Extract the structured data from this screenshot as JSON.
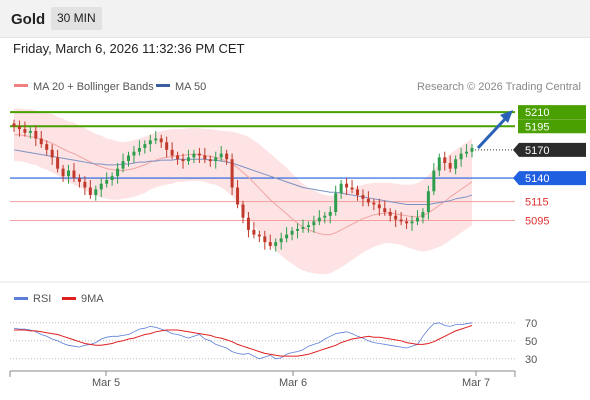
{
  "header": {
    "symbol": "Gold",
    "timeframe": "30 MIN"
  },
  "timestamp": "Friday, March 6, 2026 11:32:36 PM CET",
  "legend": {
    "bb_label": "MA 20 + Bollinger Bands",
    "bb_color": "#f08080",
    "ma50_label": "MA 50",
    "ma50_color": "#3a5f9f"
  },
  "copyright": "Research © 2026 Trading Central",
  "rsi_legend": {
    "rsi_label": "RSI",
    "rsi_color": "#5b7fd8",
    "ma_label": "9MA",
    "ma_color": "#e02020"
  },
  "colors": {
    "up": "#2e9e4e",
    "down": "#c0392b",
    "target": "#4aa000",
    "pivot": "#1f5fe0",
    "support": "#e03030",
    "band_fill": "#fde3e3"
  },
  "chart_data": [
    {
      "type": "candlestick",
      "xlabels": [
        "Mar 5",
        "Mar 6",
        "Mar 7"
      ],
      "ylim": [
        5035,
        5225
      ],
      "levels": [
        {
          "label": "5210",
          "value": 5210,
          "kind": "target"
        },
        {
          "label": "5195",
          "value": 5195,
          "kind": "target"
        },
        {
          "label": "5170",
          "value": 5170,
          "kind": "last"
        },
        {
          "label": "5140",
          "value": 5140,
          "kind": "pivot"
        },
        {
          "label": "5115",
          "value": 5115,
          "kind": "support"
        },
        {
          "label": "5095",
          "value": 5095,
          "kind": "support"
        }
      ],
      "closes": [
        5195,
        5192,
        5188,
        5190,
        5182,
        5176,
        5170,
        5162,
        5150,
        5142,
        5148,
        5140,
        5136,
        5130,
        5122,
        5128,
        5134,
        5138,
        5142,
        5150,
        5158,
        5164,
        5168,
        5172,
        5176,
        5180,
        5182,
        5178,
        5170,
        5164,
        5160,
        5158,
        5162,
        5166,
        5164,
        5160,
        5158,
        5162,
        5166,
        5160,
        5130,
        5112,
        5098,
        5085,
        5080,
        5078,
        5072,
        5068,
        5072,
        5076,
        5080,
        5084,
        5086,
        5088,
        5090,
        5094,
        5098,
        5100,
        5104,
        5124,
        5134,
        5130,
        5128,
        5122,
        5118,
        5114,
        5112,
        5108,
        5104,
        5100,
        5096,
        5094,
        5092,
        5094,
        5098,
        5104,
        5126,
        5148,
        5162,
        5156,
        5150,
        5160,
        5166,
        5168,
        5172
      ],
      "ma20": [
        5186,
        5186,
        5185,
        5184,
        5183,
        5181,
        5179,
        5177,
        5174,
        5171,
        5168,
        5166,
        5163,
        5160,
        5157,
        5154,
        5152,
        5150,
        5149,
        5148,
        5148,
        5149,
        5150,
        5152,
        5154,
        5157,
        5159,
        5161,
        5162,
        5163,
        5164,
        5164,
        5165,
        5165,
        5165,
        5164,
        5163,
        5162,
        5160,
        5158,
        5155,
        5151,
        5146,
        5141,
        5135,
        5129,
        5123,
        5117,
        5112,
        5107,
        5102,
        5097,
        5092,
        5088,
        5085,
        5083,
        5081,
        5080,
        5080,
        5082,
        5085,
        5088,
        5091,
        5094,
        5097,
        5099,
        5101,
        5102,
        5103,
        5103,
        5102,
        5101,
        5100,
        5099,
        5099,
        5100,
        5103,
        5107,
        5111,
        5115,
        5120,
        5124,
        5128,
        5132,
        5136
      ],
      "ma50": [
        5170,
        5169,
        5168,
        5167,
        5166,
        5165,
        5164,
        5163,
        5162,
        5161,
        5160,
        5159,
        5158,
        5157,
        5156,
        5155,
        5155,
        5154,
        5154,
        5154,
        5155,
        5155,
        5156,
        5157,
        5157,
        5158,
        5158,
        5159,
        5159,
        5159,
        5160,
        5160,
        5160,
        5160,
        5160,
        5160,
        5159,
        5159,
        5158,
        5157,
        5156,
        5154,
        5152,
        5150,
        5148,
        5146,
        5144,
        5142,
        5140,
        5138,
        5136,
        5134,
        5132,
        5130,
        5129,
        5128,
        5127,
        5126,
        5125,
        5125,
        5124,
        5123,
        5122,
        5121,
        5120,
        5119,
        5118,
        5117,
        5116,
        5115,
        5114,
        5113,
        5112,
        5112,
        5112,
        5112,
        5112,
        5113,
        5114,
        5115,
        5116,
        5118,
        5119,
        5120,
        5122
      ],
      "band_width": [
        28,
        28,
        28,
        29,
        29,
        30,
        30,
        31,
        31,
        32,
        32,
        33,
        33,
        33,
        33,
        33,
        33,
        32,
        32,
        31,
        30,
        30,
        30,
        30,
        30,
        29,
        29,
        29,
        29,
        29,
        28,
        28,
        28,
        28,
        28,
        28,
        29,
        29,
        30,
        32,
        34,
        37,
        40,
        43,
        45,
        47,
        48,
        49,
        49,
        49,
        49,
        48,
        47,
        46,
        45,
        44,
        43,
        42,
        41,
        40,
        40,
        39,
        38,
        37,
        36,
        35,
        34,
        33,
        32,
        32,
        32,
        32,
        33,
        34,
        36,
        38,
        40,
        42,
        44,
        45,
        46,
        46,
        46,
        46,
        46
      ]
    },
    {
      "type": "line",
      "title": "RSI",
      "yticks": [
        70,
        50,
        30
      ],
      "ylim": [
        22,
        82
      ],
      "rsi": [
        64,
        63,
        63,
        62,
        60,
        57,
        55,
        52,
        50,
        47,
        45,
        44,
        43,
        45,
        46,
        48,
        52,
        54,
        55,
        55,
        56,
        57,
        60,
        63,
        64,
        66,
        65,
        63,
        61,
        58,
        57,
        55,
        53,
        55,
        57,
        52,
        50,
        46,
        44,
        42,
        38,
        36,
        35,
        36,
        33,
        30,
        32,
        34,
        30,
        31,
        35,
        37,
        38,
        40,
        44,
        46,
        48,
        52,
        55,
        58,
        59,
        60,
        58,
        55,
        53,
        50,
        48,
        47,
        46,
        45,
        44,
        43,
        42,
        44,
        46,
        55,
        63,
        69,
        70,
        67,
        66,
        68,
        68,
        69,
        70
      ],
      "ma9": [
        62,
        62,
        62,
        61,
        61,
        60,
        59,
        58,
        57,
        55,
        53,
        51,
        49,
        47,
        46,
        45,
        45,
        46,
        47,
        49,
        50,
        52,
        53,
        55,
        57,
        58,
        60,
        61,
        62,
        62,
        62,
        61,
        60,
        59,
        58,
        57,
        56,
        54,
        53,
        51,
        49,
        46,
        44,
        42,
        40,
        38,
        36,
        35,
        34,
        33,
        33,
        33,
        33,
        34,
        35,
        37,
        39,
        41,
        43,
        45,
        48,
        50,
        52,
        53,
        54,
        55,
        54,
        54,
        53,
        52,
        51,
        50,
        48,
        47,
        46,
        46,
        47,
        49,
        52,
        55,
        58,
        61,
        63,
        65,
        67
      ]
    }
  ]
}
